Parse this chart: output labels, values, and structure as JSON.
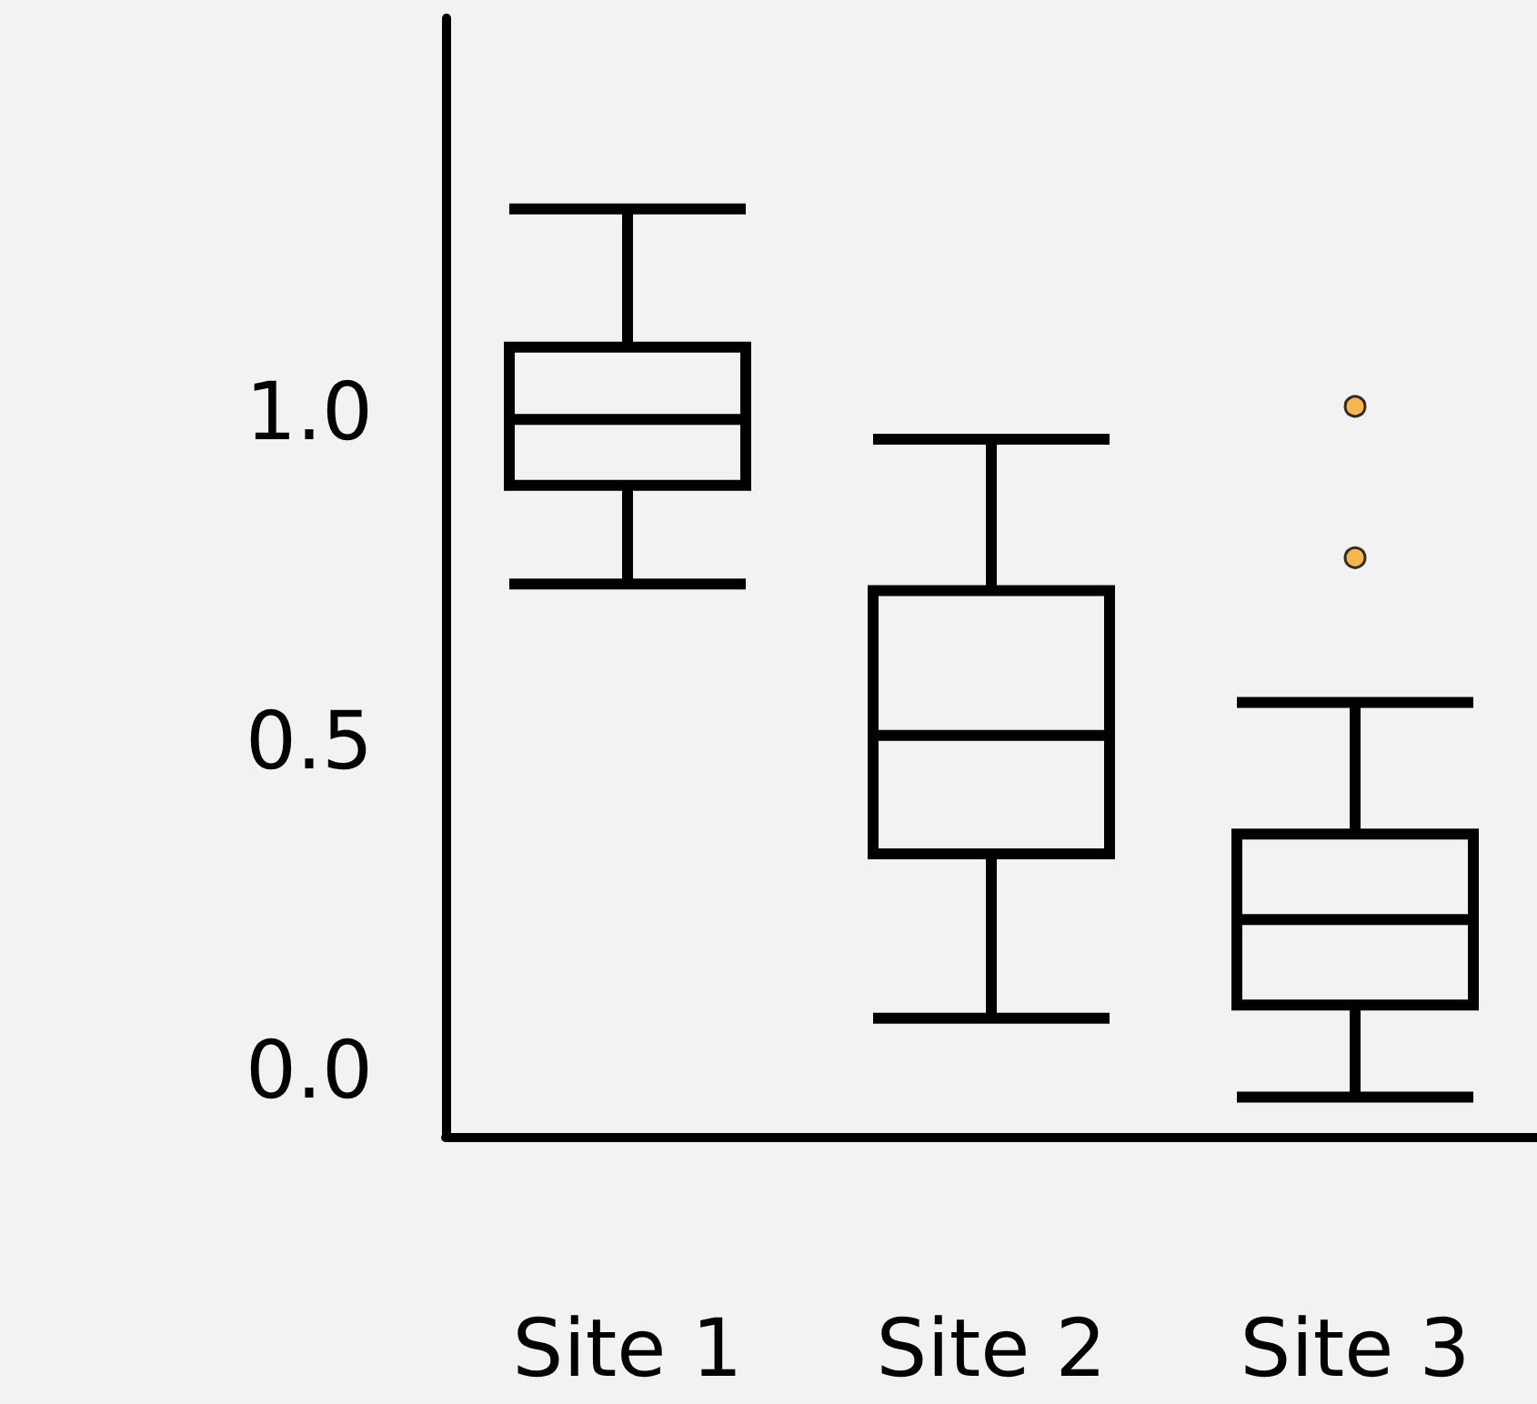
{
  "chart_data": {
    "type": "box",
    "categories": [
      "Site 1",
      "Site 2",
      "Site 3"
    ],
    "boxes": [
      {
        "low": 0.74,
        "q1": 0.89,
        "median": 0.99,
        "q3": 1.1,
        "high": 1.31
      },
      {
        "low": 0.08,
        "q1": 0.33,
        "median": 0.51,
        "q3": 0.73,
        "high": 0.96
      },
      {
        "low": -0.04,
        "q1": 0.1,
        "median": 0.23,
        "q3": 0.36,
        "high": 0.56,
        "outliers": [
          0.78,
          1.01
        ]
      }
    ],
    "color": "#000000",
    "ylim": [
      -0.1,
      1.6
    ],
    "yticks": [
      {
        "value": 0,
        "label": "0.0"
      },
      {
        "value": 0.5,
        "label": "0.5"
      },
      {
        "value": 1,
        "label": "1.0"
      }
    ],
    "grid": false
  }
}
